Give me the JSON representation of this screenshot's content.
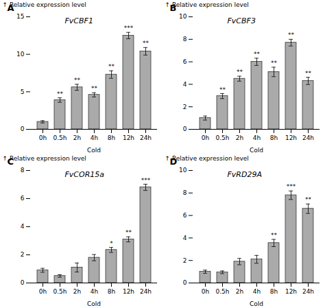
{
  "chart_data": [
    {
      "type": "bar",
      "panel_label": "A",
      "title": "FvCBF1",
      "categories": [
        "0h",
        "0.5h",
        "2h",
        "4h",
        "8h",
        "12h",
        "24h"
      ],
      "values": [
        1.0,
        3.9,
        5.6,
        4.6,
        7.3,
        12.5,
        10.4
      ],
      "errors": [
        0.15,
        0.3,
        0.4,
        0.28,
        0.5,
        0.42,
        0.5
      ],
      "significance": [
        null,
        "**",
        "**",
        "**",
        "**",
        "***",
        "**"
      ],
      "xlabel": "Cold",
      "ylabel": "Relative expression level",
      "ylim": [
        0,
        15
      ],
      "yticks": [
        0,
        5,
        10,
        15
      ],
      "color": "#aaaaaa",
      "grid": false
    },
    {
      "type": "bar",
      "panel_label": "B",
      "title": "FvCBF3",
      "categories": [
        "0h",
        "0.5h",
        "2h",
        "4h",
        "8h",
        "12h",
        "24h"
      ],
      "values": [
        1.0,
        2.95,
        4.5,
        6.0,
        5.1,
        7.7,
        4.3
      ],
      "errors": [
        0.18,
        0.22,
        0.22,
        0.32,
        0.42,
        0.3,
        0.32
      ],
      "significance": [
        null,
        "**",
        "**",
        "**",
        "**",
        "**",
        "**"
      ],
      "xlabel": "Cold",
      "ylabel": "Relative expression level",
      "ylim": [
        0,
        10
      ],
      "yticks": [
        0,
        2,
        4,
        6,
        8,
        10
      ],
      "color": "#aaaaaa",
      "grid": false
    },
    {
      "type": "bar",
      "panel_label": "C",
      "title": "FvCOR15a",
      "categories": [
        "0h",
        "0.5h",
        "2h",
        "4h",
        "8h",
        "12h",
        "24h"
      ],
      "values": [
        0.9,
        0.5,
        1.1,
        1.8,
        2.35,
        3.1,
        6.8
      ],
      "errors": [
        0.14,
        0.09,
        0.32,
        0.22,
        0.18,
        0.18,
        0.22
      ],
      "significance": [
        null,
        null,
        null,
        null,
        "*",
        "**",
        "***"
      ],
      "xlabel": "Cold",
      "ylabel": "Relative expression level",
      "ylim": [
        0,
        8
      ],
      "yticks": [
        0,
        2,
        4,
        6,
        8
      ],
      "color": "#aaaaaa",
      "grid": false
    },
    {
      "type": "bar",
      "panel_label": "D",
      "title": "FvRD29A",
      "categories": [
        "0h",
        "0.5h",
        "2h",
        "4h",
        "8h",
        "12h",
        "24h"
      ],
      "values": [
        1.0,
        0.95,
        1.9,
        2.1,
        3.55,
        7.8,
        6.6
      ],
      "errors": [
        0.14,
        0.12,
        0.28,
        0.35,
        0.32,
        0.38,
        0.42
      ],
      "significance": [
        null,
        null,
        null,
        null,
        "**",
        "***",
        "**"
      ],
      "xlabel": "Cold",
      "ylabel": "Relative expression level",
      "ylim": [
        0,
        10
      ],
      "yticks": [
        0,
        2,
        4,
        6,
        8,
        10
      ],
      "color": "#aaaaaa",
      "grid": false
    }
  ]
}
